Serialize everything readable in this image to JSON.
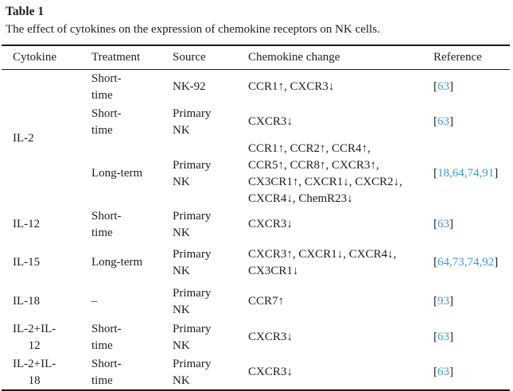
{
  "table": {
    "label": "Table 1",
    "caption": "The effect of cytokines on the expression of chemokine receptors on NK cells.",
    "columns": [
      "Cytokine",
      "Treatment",
      "Source",
      "Chemokine change",
      "Reference"
    ],
    "rows": [
      {
        "cytokine": "IL-2",
        "cytokine_rowspan": 3,
        "treatment": "Short-\ntime",
        "source": "NK-92",
        "change": "CCR1↑, CXCR3↓",
        "refs": [
          "63"
        ]
      },
      {
        "treatment": "Short-\ntime",
        "source": "Primary\nNK",
        "change": "CXCR3↓",
        "refs": [
          "63"
        ]
      },
      {
        "treatment": "Long-term",
        "source": "Primary\nNK",
        "change": "CCR1↑, CCR2↑, CCR4↑,\nCCR5↑, CCR8↑, CXCR3↑,\nCX3CR1↑, CXCR1↓, CXCR2↓,\nCXCR4↓, ChemR23↓",
        "refs": [
          "18",
          "64",
          "74",
          "91"
        ]
      },
      {
        "cytokine": "IL-12",
        "cytokine_rowspan": 1,
        "treatment": "Short-\ntime",
        "source": "Primary\nNK",
        "change": "CXCR3↓",
        "refs": [
          "63"
        ]
      },
      {
        "cytokine": "IL-15",
        "cytokine_rowspan": 1,
        "treatment": "Long-term",
        "source": "Primary\nNK",
        "change": "CXCR3↑, CXCR1↓, CXCR4↓,\nCX3CR1↓",
        "refs": [
          "64",
          "73",
          "74",
          "92"
        ]
      },
      {
        "cytokine": "IL-18",
        "cytokine_rowspan": 1,
        "treatment": "–",
        "source": "Primary\nNK",
        "change": "CCR7↑",
        "refs": [
          "93"
        ]
      },
      {
        "cytokine": "IL-2+IL-\n12",
        "cytokine_rowspan": 1,
        "treatment": "Short-\ntime",
        "source": "Primary\nNK",
        "change": "CXCR3↓",
        "refs": [
          "63"
        ]
      },
      {
        "cytokine": "IL-2+IL-\n18",
        "cytokine_rowspan": 1,
        "treatment": "Short-\ntime",
        "source": "Primary\nNK",
        "change": "CXCR3↓",
        "refs": [
          "63"
        ]
      }
    ],
    "colors": {
      "link_blue": "#3b9bd7",
      "text": "#1e1e1e",
      "rule": "#1a1a1a"
    }
  }
}
